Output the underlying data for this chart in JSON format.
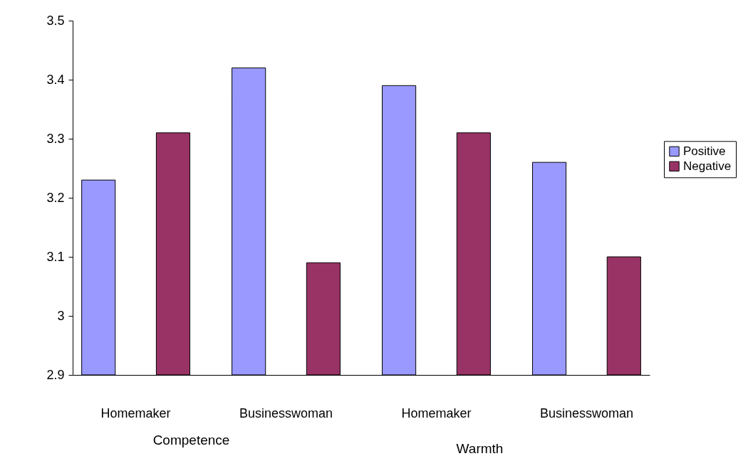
{
  "chart_data": {
    "type": "bar",
    "categories": [
      "Homemaker",
      "Businesswoman",
      "Homemaker",
      "Businesswoman"
    ],
    "series": [
      {
        "name": "Positive",
        "color": "#9999ff",
        "values": [
          3.23,
          3.42,
          3.39,
          3.26
        ]
      },
      {
        "name": "Negative",
        "color": "#993366",
        "values": [
          3.31,
          3.09,
          3.31,
          3.1
        ]
      }
    ],
    "ylim": [
      2.9,
      3.5
    ],
    "yticks": [
      2.9,
      3,
      3.1,
      3.2,
      3.3,
      3.4,
      3.5
    ],
    "grid": false,
    "legend": "right",
    "annotations": [
      "Competence",
      "Warmth"
    ]
  }
}
